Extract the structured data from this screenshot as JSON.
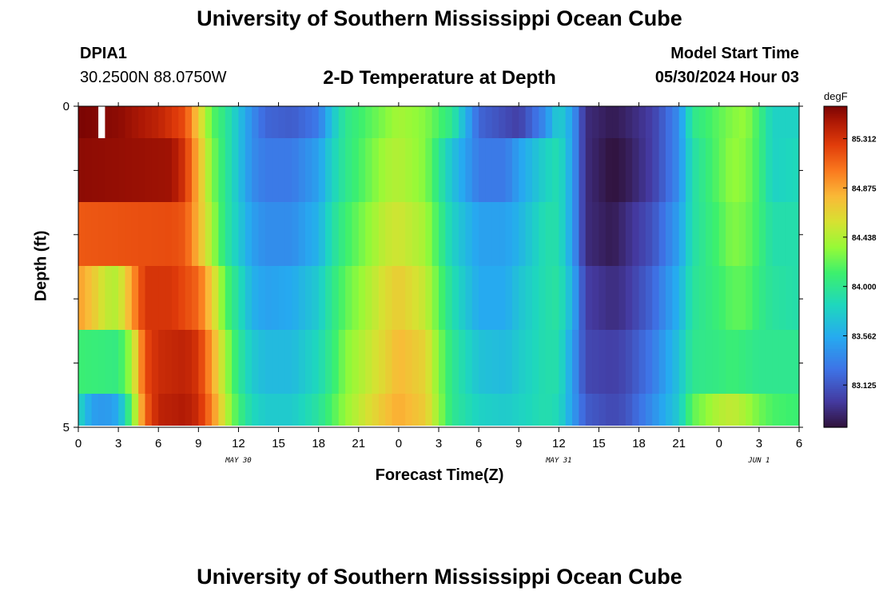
{
  "header": {
    "title": "University of Southern Mississippi Ocean Cube",
    "station_id": "DPIA1",
    "station_coords": "30.2500N  88.0750W",
    "plot_title": "2-D Temperature at Depth",
    "model_start_label": "Model Start Time",
    "model_start_value": "05/30/2024 Hour 03"
  },
  "footer": {
    "title": "University of Southern Mississippi Ocean Cube"
  },
  "chart_data": {
    "type": "heatmap",
    "title": "2-D Temperature at Depth",
    "xlabel": "Forecast Time(Z)",
    "ylabel": "Depth (ft)",
    "units": "degF",
    "x_tick_labels": [
      "0",
      "3",
      "6",
      "9",
      "12",
      "15",
      "18",
      "21",
      "0",
      "3",
      "6",
      "9",
      "12",
      "15",
      "18",
      "21",
      "0",
      "3",
      "6"
    ],
    "date_labels": [
      {
        "text": "MAY 30",
        "at_hour": 12
      },
      {
        "text": "MAY 31",
        "at_hour": 36
      },
      {
        "text": "JUN 1",
        "at_hour": 51
      }
    ],
    "x_range_hours": [
      0,
      54
    ],
    "y_range_ft": [
      0,
      5
    ],
    "y_tick_labels": [
      "0",
      "5"
    ],
    "depth_layers_ft": [
      0.25,
      1.25,
      2.25,
      3.25,
      4.25,
      4.75
    ],
    "color_scale": {
      "min": 82.75,
      "max": 85.6,
      "tick_values": [
        85.312,
        84.875,
        84.438,
        84.0,
        83.562,
        83.125
      ],
      "tick_labels": [
        "85.312",
        "84.875",
        "84.438",
        "84.000",
        "83.562",
        "83.125"
      ]
    },
    "rows_knots": [
      [
        [
          0,
          85.6
        ],
        [
          3,
          85.55
        ],
        [
          6,
          85.4
        ],
        [
          8,
          85.2
        ],
        [
          9,
          84.7
        ],
        [
          10,
          84.2
        ],
        [
          11,
          84.0
        ],
        [
          12,
          83.7
        ],
        [
          13,
          83.4
        ],
        [
          14,
          83.2
        ],
        [
          16,
          83.15
        ],
        [
          18,
          83.3
        ],
        [
          19,
          83.7
        ],
        [
          20,
          84.0
        ],
        [
          23,
          84.3
        ],
        [
          24,
          84.4
        ],
        [
          26,
          84.3
        ],
        [
          28,
          84.0
        ],
        [
          29,
          83.6
        ],
        [
          30,
          83.2
        ],
        [
          33,
          83.0
        ],
        [
          35,
          83.4
        ],
        [
          36,
          83.8
        ],
        [
          37,
          83.5
        ],
        [
          38,
          82.9
        ],
        [
          40,
          82.8
        ],
        [
          41,
          82.85
        ],
        [
          43,
          83.0
        ],
        [
          45,
          83.4
        ],
        [
          46,
          84.0
        ],
        [
          48,
          84.2
        ],
        [
          49,
          84.3
        ],
        [
          50,
          84.35
        ],
        [
          51,
          84.1
        ],
        [
          52,
          83.8
        ],
        [
          54,
          83.8
        ]
      ],
      [
        [
          0,
          85.55
        ],
        [
          7,
          85.5
        ],
        [
          8,
          85.3
        ],
        [
          9,
          84.8
        ],
        [
          10,
          84.3
        ],
        [
          11,
          84.0
        ],
        [
          12,
          83.7
        ],
        [
          13,
          83.4
        ],
        [
          14,
          83.3
        ],
        [
          16,
          83.3
        ],
        [
          18,
          83.5
        ],
        [
          19,
          83.8
        ],
        [
          20,
          84.0
        ],
        [
          23,
          84.4
        ],
        [
          24,
          84.45
        ],
        [
          26,
          84.3
        ],
        [
          27,
          84.0
        ],
        [
          28,
          83.7
        ],
        [
          30,
          83.3
        ],
        [
          32,
          83.3
        ],
        [
          33,
          83.5
        ],
        [
          35,
          83.8
        ],
        [
          36,
          83.9
        ],
        [
          37,
          83.5
        ],
        [
          38,
          82.9
        ],
        [
          40,
          82.75
        ],
        [
          41,
          82.8
        ],
        [
          43,
          83.0
        ],
        [
          45,
          83.4
        ],
        [
          46,
          83.9
        ],
        [
          48,
          84.2
        ],
        [
          49,
          84.35
        ],
        [
          50,
          84.3
        ],
        [
          51,
          84.1
        ],
        [
          52,
          83.8
        ],
        [
          54,
          83.85
        ]
      ],
      [
        [
          0,
          85.15
        ],
        [
          7,
          85.2
        ],
        [
          8,
          85.15
        ],
        [
          9,
          84.8
        ],
        [
          10,
          84.4
        ],
        [
          11,
          84.0
        ],
        [
          12,
          83.75
        ],
        [
          13,
          83.5
        ],
        [
          14,
          83.4
        ],
        [
          16,
          83.4
        ],
        [
          18,
          83.6
        ],
        [
          19,
          83.9
        ],
        [
          20,
          84.1
        ],
        [
          23,
          84.5
        ],
        [
          24,
          84.55
        ],
        [
          26,
          84.4
        ],
        [
          27,
          84.1
        ],
        [
          28,
          83.8
        ],
        [
          30,
          83.5
        ],
        [
          32,
          83.5
        ],
        [
          33,
          83.6
        ],
        [
          35,
          83.9
        ],
        [
          36,
          83.9
        ],
        [
          37,
          83.5
        ],
        [
          38,
          82.9
        ],
        [
          40,
          82.8
        ],
        [
          41,
          82.9
        ],
        [
          43,
          83.1
        ],
        [
          45,
          83.5
        ],
        [
          46,
          83.9
        ],
        [
          48,
          84.15
        ],
        [
          49,
          84.3
        ],
        [
          50,
          84.25
        ],
        [
          51,
          84.1
        ],
        [
          52,
          83.9
        ],
        [
          54,
          83.9
        ]
      ],
      [
        [
          0,
          84.9
        ],
        [
          1,
          84.75
        ],
        [
          2,
          84.5
        ],
        [
          3,
          84.45
        ],
        [
          4,
          84.9
        ],
        [
          5,
          85.3
        ],
        [
          7,
          85.3
        ],
        [
          9,
          85.1
        ],
        [
          10,
          84.7
        ],
        [
          11,
          84.2
        ],
        [
          12,
          83.9
        ],
        [
          13,
          83.6
        ],
        [
          14,
          83.5
        ],
        [
          16,
          83.55
        ],
        [
          18,
          83.75
        ],
        [
          19,
          84.0
        ],
        [
          20,
          84.2
        ],
        [
          23,
          84.6
        ],
        [
          24,
          84.7
        ],
        [
          26,
          84.5
        ],
        [
          27,
          84.2
        ],
        [
          28,
          83.9
        ],
        [
          30,
          83.55
        ],
        [
          32,
          83.55
        ],
        [
          33,
          83.7
        ],
        [
          35,
          83.9
        ],
        [
          36,
          83.95
        ],
        [
          37,
          83.6
        ],
        [
          38,
          83.0
        ],
        [
          40,
          82.9
        ],
        [
          41,
          82.95
        ],
        [
          43,
          83.2
        ],
        [
          45,
          83.6
        ],
        [
          46,
          83.95
        ],
        [
          48,
          84.1
        ],
        [
          49,
          84.2
        ],
        [
          50,
          84.2
        ],
        [
          51,
          84.05
        ],
        [
          52,
          83.95
        ],
        [
          54,
          83.9
        ]
      ],
      [
        [
          0,
          84.1
        ],
        [
          3,
          84.05
        ],
        [
          4,
          84.4
        ],
        [
          5,
          85.2
        ],
        [
          6,
          85.35
        ],
        [
          8,
          85.4
        ],
        [
          9,
          85.3
        ],
        [
          10,
          84.9
        ],
        [
          11,
          84.4
        ],
        [
          12,
          84.0
        ],
        [
          13,
          83.75
        ],
        [
          14,
          83.65
        ],
        [
          16,
          83.65
        ],
        [
          18,
          83.85
        ],
        [
          19,
          84.05
        ],
        [
          20,
          84.3
        ],
        [
          23,
          84.65
        ],
        [
          24,
          84.8
        ],
        [
          26,
          84.65
        ],
        [
          27,
          84.3
        ],
        [
          28,
          84.0
        ],
        [
          30,
          83.7
        ],
        [
          32,
          83.65
        ],
        [
          33,
          83.75
        ],
        [
          35,
          83.9
        ],
        [
          36,
          83.9
        ],
        [
          37,
          83.5
        ],
        [
          38,
          83.05
        ],
        [
          40,
          83.0
        ],
        [
          41,
          83.05
        ],
        [
          43,
          83.3
        ],
        [
          45,
          83.7
        ],
        [
          46,
          84.0
        ],
        [
          48,
          84.05
        ],
        [
          49,
          84.1
        ],
        [
          50,
          84.05
        ],
        [
          51,
          84.0
        ],
        [
          52,
          84.0
        ],
        [
          54,
          84.0
        ]
      ],
      [
        [
          0,
          83.85
        ],
        [
          1,
          83.5
        ],
        [
          2,
          83.45
        ],
        [
          3,
          83.55
        ],
        [
          4,
          84.2
        ],
        [
          5,
          85.1
        ],
        [
          6,
          85.4
        ],
        [
          8,
          85.45
        ],
        [
          9,
          85.35
        ],
        [
          10,
          85.0
        ],
        [
          11,
          84.5
        ],
        [
          12,
          84.1
        ],
        [
          13,
          83.85
        ],
        [
          14,
          83.75
        ],
        [
          16,
          83.75
        ],
        [
          18,
          83.95
        ],
        [
          19,
          84.15
        ],
        [
          20,
          84.35
        ],
        [
          23,
          84.75
        ],
        [
          24,
          84.85
        ],
        [
          26,
          84.7
        ],
        [
          27,
          84.35
        ],
        [
          28,
          84.0
        ],
        [
          30,
          83.8
        ],
        [
          32,
          83.75
        ],
        [
          33,
          83.8
        ],
        [
          35,
          83.9
        ],
        [
          36,
          83.85
        ],
        [
          37,
          83.5
        ],
        [
          38,
          83.15
        ],
        [
          40,
          83.05
        ],
        [
          41,
          83.1
        ],
        [
          43,
          83.4
        ],
        [
          45,
          83.75
        ],
        [
          46,
          84.2
        ],
        [
          48,
          84.45
        ],
        [
          49,
          84.5
        ],
        [
          50,
          84.4
        ],
        [
          51,
          84.25
        ],
        [
          52,
          84.15
        ],
        [
          54,
          84.1
        ]
      ]
    ],
    "missing_cells": [
      {
        "row": 0,
        "hour": 1.5
      }
    ]
  }
}
